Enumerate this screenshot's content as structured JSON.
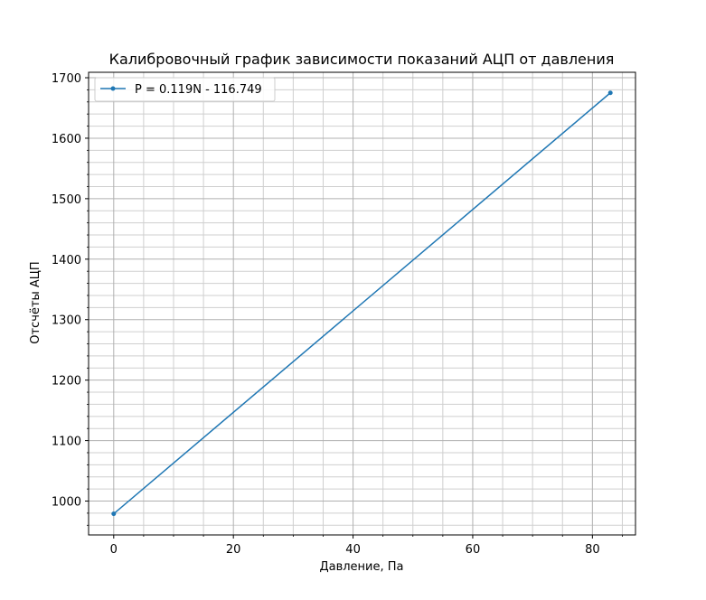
{
  "chart_data": {
    "type": "line",
    "title": "Калибровочный график зависимости показаний АЦП от давления",
    "xlabel": "Давление, Па",
    "ylabel": "Отсчёты АЦП",
    "xlim": [
      -4.2,
      87.2
    ],
    "ylim": [
      944,
      1709
    ],
    "x_major_ticks": [
      0,
      20,
      40,
      60,
      80
    ],
    "x_tick_labels": [
      "0",
      "20",
      "40",
      "60",
      "80"
    ],
    "x_minor_step": 5,
    "y_major_ticks": [
      1000,
      1100,
      1200,
      1300,
      1400,
      1500,
      1600,
      1700
    ],
    "y_tick_labels": [
      "1000",
      "1100",
      "1200",
      "1300",
      "1400",
      "1500",
      "1600",
      "1700"
    ],
    "y_minor_step": 20,
    "grid": true,
    "legend_position": "top-left",
    "series": [
      {
        "name": "P = 0.119N - 116.749",
        "color": "#1f77b4",
        "x": [
          0,
          83
        ],
        "y": [
          979,
          1675
        ]
      }
    ]
  }
}
